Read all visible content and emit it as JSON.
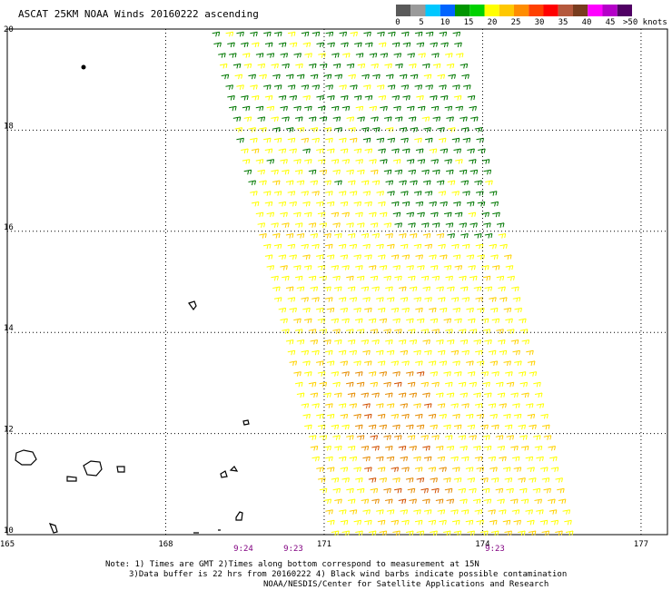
{
  "title": "ASCAT 25KM NOAA Winds 20160222 ascending",
  "legend": {
    "colors": [
      "#5a5a5a",
      "#9a9a9a",
      "#00c8ff",
      "#0064ff",
      "#009600",
      "#00d200",
      "#ffff00",
      "#ffc800",
      "#ff8c00",
      "#ff4000",
      "#ff0000",
      "#b4583c",
      "#783c1e",
      "#ff00ff",
      "#b400c8",
      "#500064"
    ],
    "labels": [
      "0",
      "5",
      "10",
      "15",
      "20",
      "25",
      "30",
      "35",
      "40",
      "45",
      ">50 knots"
    ]
  },
  "axes": {
    "lon_ticks": [
      "165",
      "168",
      "171",
      "174",
      "177"
    ],
    "lat_ticks": [
      "20",
      "18",
      "16",
      "14",
      "12",
      "10"
    ],
    "lon_range": [
      165,
      177.5
    ],
    "lat_range": [
      10,
      20
    ]
  },
  "times": [
    "9:24",
    "9:23",
    "9:23"
  ],
  "notes": [
    "Note: 1) Times are GMT 2)Times along bottom correspond to measurement at 15N",
    "3)Data buffer is 22 hrs from 20160222 4) Black wind barbs indicate possible contamination",
    "NOAA/NESDIS/Center for Satellite Applications and Research"
  ],
  "map_style": {
    "grid": "dotted",
    "swath_colors": {
      "calm": "#007800",
      "moderate": "#ffff00",
      "fresh": "#ffd200",
      "strong": "#e68c00",
      "stronger": "#d25000"
    }
  }
}
